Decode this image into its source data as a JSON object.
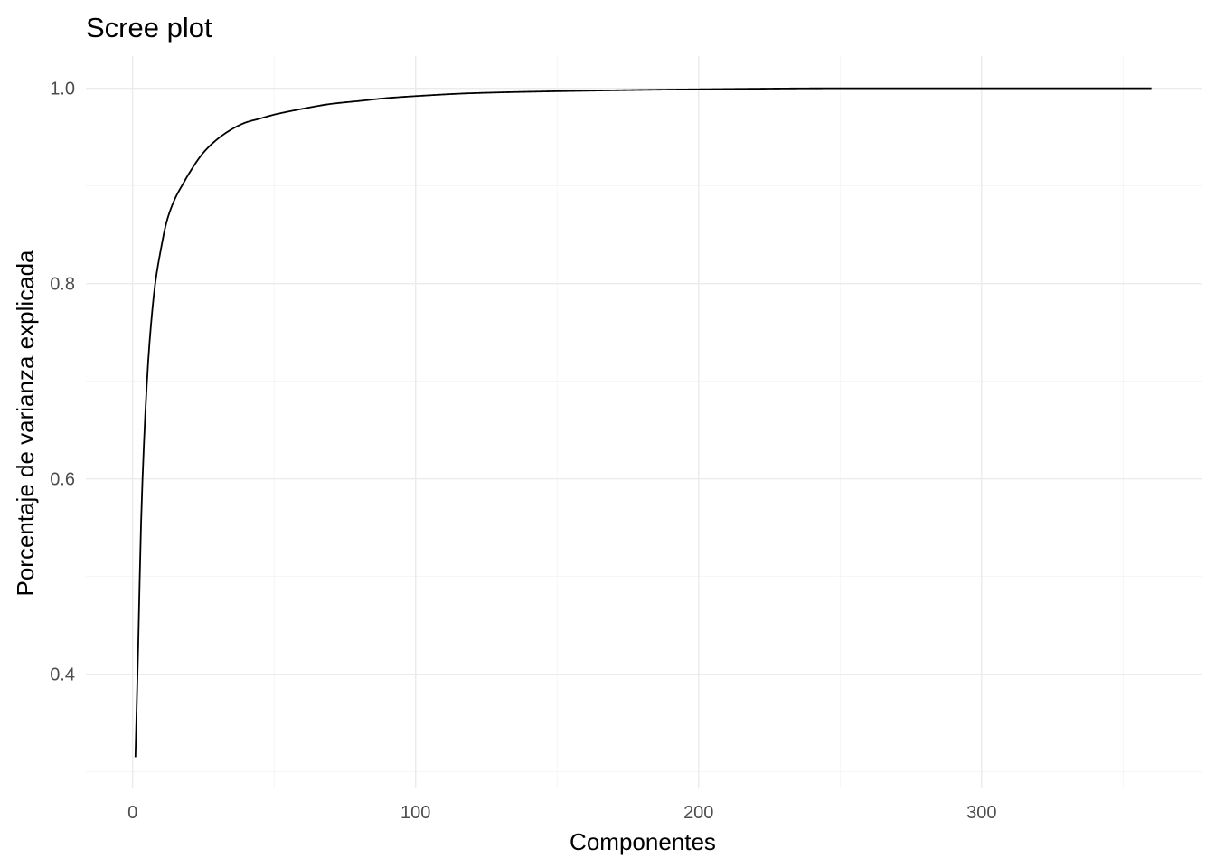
{
  "chart_data": {
    "type": "line",
    "title": "Scree plot",
    "xlabel": "Componentes",
    "ylabel": "Porcentaje de varianza explicada",
    "xlim": [
      -16.5,
      378
    ],
    "ylim": [
      0.283,
      1.033
    ],
    "x_ticks": [
      0,
      100,
      200,
      300
    ],
    "x_tick_labels": [
      "0",
      "100",
      "200",
      "300"
    ],
    "x_minor_ticks": [
      50,
      150,
      250,
      350
    ],
    "y_ticks": [
      0.4,
      0.6,
      0.8,
      1.0
    ],
    "y_tick_labels": [
      "0.4",
      "0.6",
      "0.8",
      "1.0"
    ],
    "y_minor_ticks": [
      0.3,
      0.5,
      0.7,
      0.9
    ],
    "grid": true,
    "legend": "none",
    "line_color": "#000000",
    "x": [
      1,
      2,
      3,
      4,
      5,
      6,
      8,
      10,
      12,
      15,
      18,
      20,
      25,
      30,
      35,
      40,
      45,
      50,
      60,
      70,
      80,
      90,
      100,
      120,
      150,
      200,
      250,
      300,
      360
    ],
    "values": [
      0.315,
      0.43,
      0.555,
      0.635,
      0.695,
      0.74,
      0.8,
      0.835,
      0.863,
      0.887,
      0.903,
      0.913,
      0.934,
      0.948,
      0.958,
      0.965,
      0.969,
      0.973,
      0.979,
      0.984,
      0.987,
      0.99,
      0.992,
      0.995,
      0.997,
      0.999,
      1.0,
      1.0,
      1.0
    ]
  }
}
